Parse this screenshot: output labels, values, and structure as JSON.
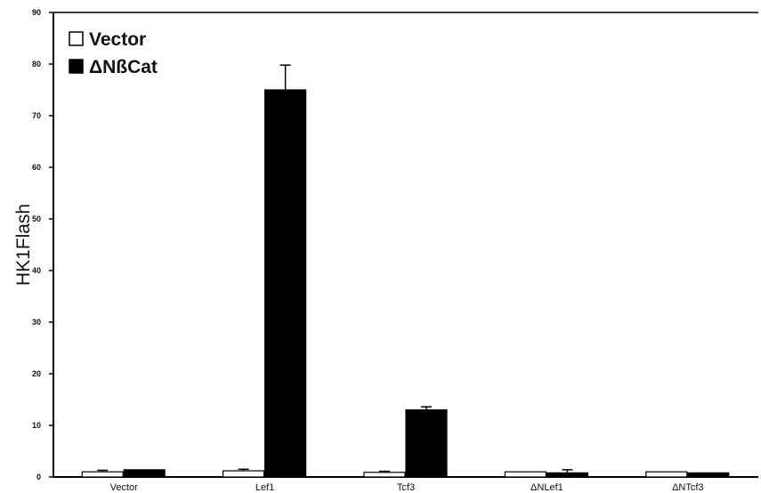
{
  "chart_data": {
    "type": "bar",
    "title": "",
    "xlabel": "",
    "ylabel": "HK1Flash",
    "ylim": [
      0,
      90
    ],
    "yticks": [
      0,
      10,
      20,
      30,
      40,
      50,
      60,
      70,
      80,
      90
    ],
    "ytick_labels": [
      "0",
      "10",
      "20",
      "30",
      "40",
      "50",
      "60",
      "70",
      "80",
      "90"
    ],
    "grid": false,
    "legend_position": "top-left",
    "categories": [
      "Vector",
      "Lef1",
      "Tcf3",
      "ΔNLef1",
      "ΔNTcf3"
    ],
    "series": [
      {
        "name": "Vector",
        "color": "#ffffff",
        "values": [
          1.0,
          1.2,
          0.9,
          1.0,
          1.0
        ],
        "errors": [
          0.3,
          0.3,
          0.2,
          0.0,
          0.0
        ]
      },
      {
        "name": "ΔNßCat",
        "color": "#000000",
        "values": [
          1.4,
          75.0,
          13.0,
          0.8,
          0.8
        ],
        "errors": [
          0.0,
          4.8,
          0.6,
          0.6,
          0.0
        ]
      }
    ]
  }
}
